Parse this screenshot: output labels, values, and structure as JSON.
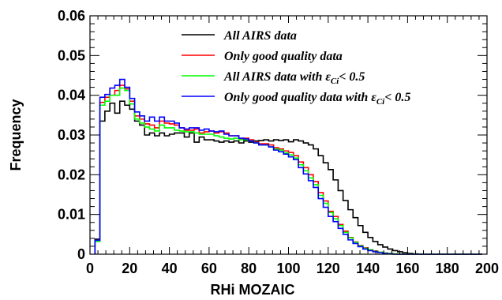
{
  "chart_data": {
    "type": "line",
    "xlabel": "RHi MOZAIC",
    "ylabel": "Frequency",
    "xlim": [
      0,
      200
    ],
    "ylim": [
      0,
      0.06
    ],
    "x_ticks": [
      "0",
      "20",
      "40",
      "60",
      "80",
      "100",
      "120",
      "140",
      "160",
      "180",
      "200"
    ],
    "y_ticks": [
      "0",
      "0.01",
      "0.02",
      "0.03",
      "0.04",
      "0.05",
      "0.06"
    ],
    "grid": false,
    "legend_position": "top-center",
    "bin_width": 2.5,
    "bin_start": 2.5,
    "series": [
      {
        "name": "All AIRS data",
        "name_parts": [
          "All AIRS data"
        ],
        "color": "#000000",
        "values": [
          0.0038,
          0.0335,
          0.036,
          0.038,
          0.0355,
          0.0385,
          0.0375,
          0.0365,
          0.0335,
          0.0325,
          0.03,
          0.0305,
          0.0298,
          0.0305,
          0.0298,
          0.0302,
          0.0305,
          0.0305,
          0.0295,
          0.0305,
          0.0282,
          0.0295,
          0.0288,
          0.0288,
          0.0285,
          0.0282,
          0.0285,
          0.0282,
          0.0285,
          0.028,
          0.0285,
          0.0282,
          0.0285,
          0.0286,
          0.0288,
          0.0285,
          0.0288,
          0.0286,
          0.0288,
          0.0283,
          0.0288,
          0.0285,
          0.028,
          0.0275,
          0.0265,
          0.0248,
          0.023,
          0.0213,
          0.0187,
          0.016,
          0.0135,
          0.0112,
          0.0092,
          0.0072,
          0.0055,
          0.0042,
          0.0032,
          0.0024,
          0.0018,
          0.0013,
          0.0009,
          0.0006,
          0.0004,
          0.0002,
          0.0001,
          5e-05,
          0.0,
          0.0,
          0.0,
          0.0,
          0.0,
          0.0,
          0.0,
          0.0,
          0.0,
          0.0,
          0.0,
          0.0
        ]
      },
      {
        "name": "Only good quality data",
        "name_parts": [
          "Only good quality data"
        ],
        "color": "#ff0000",
        "values": [
          0.0035,
          0.0382,
          0.0395,
          0.04,
          0.0412,
          0.0425,
          0.0416,
          0.0385,
          0.0348,
          0.034,
          0.0328,
          0.0325,
          0.0318,
          0.0335,
          0.033,
          0.0328,
          0.0325,
          0.0318,
          0.0312,
          0.0312,
          0.0315,
          0.0305,
          0.0308,
          0.031,
          0.0305,
          0.0308,
          0.0305,
          0.0298,
          0.0298,
          0.029,
          0.0292,
          0.0288,
          0.0282,
          0.0278,
          0.0278,
          0.0275,
          0.0268,
          0.0265,
          0.026,
          0.0256,
          0.0248,
          0.0232,
          0.0218,
          0.02,
          0.0183,
          0.0155,
          0.0134,
          0.0108,
          0.0095,
          0.0075,
          0.0058,
          0.0042,
          0.0031,
          0.0022,
          0.0016,
          0.0011,
          0.0008,
          0.0005,
          0.0003,
          0.0002,
          0.0001,
          0.0,
          0.0,
          0.0,
          0.0,
          0.0,
          0.0,
          0.0,
          0.0,
          0.0,
          0.0,
          0.0,
          0.0,
          0.0,
          0.0,
          0.0,
          0.0,
          0.0
        ]
      },
      {
        "name": "All AIRS data with εCi< 0.5",
        "name_parts": [
          "All AIRS data with ε",
          "Ci",
          "< 0.5"
        ],
        "color": "#00ff00",
        "values": [
          0.0032,
          0.0375,
          0.0385,
          0.04,
          0.04,
          0.0418,
          0.0412,
          0.0378,
          0.034,
          0.033,
          0.032,
          0.0315,
          0.031,
          0.0325,
          0.0318,
          0.0318,
          0.0312,
          0.031,
          0.0308,
          0.0308,
          0.0305,
          0.0302,
          0.0302,
          0.0302,
          0.0298,
          0.0295,
          0.0292,
          0.029,
          0.0292,
          0.0288,
          0.0288,
          0.0285,
          0.028,
          0.0275,
          0.0275,
          0.027,
          0.0265,
          0.0262,
          0.0255,
          0.025,
          0.0242,
          0.0225,
          0.021,
          0.0192,
          0.0175,
          0.0148,
          0.0128,
          0.0105,
          0.0089,
          0.0072,
          0.0055,
          0.0041,
          0.003,
          0.0021,
          0.0015,
          0.0011,
          0.0007,
          0.0005,
          0.0003,
          0.0002,
          0.0001,
          0.0,
          0.0,
          0.0,
          0.0,
          0.0,
          0.0,
          0.0,
          0.0,
          0.0,
          0.0,
          0.0,
          0.0,
          0.0,
          0.0,
          0.0,
          0.0,
          0.0
        ]
      },
      {
        "name": "Only good quality data with εCi< 0.5",
        "name_parts": [
          "Only good quality data with ε",
          "Ci",
          "< 0.5"
        ],
        "color": "#0000ff",
        "values": [
          0.0035,
          0.0395,
          0.0402,
          0.0418,
          0.0425,
          0.044,
          0.042,
          0.0392,
          0.0358,
          0.0348,
          0.0335,
          0.0345,
          0.0335,
          0.0345,
          0.0335,
          0.0335,
          0.033,
          0.0318,
          0.0315,
          0.0318,
          0.0318,
          0.0312,
          0.0315,
          0.031,
          0.0308,
          0.031,
          0.0302,
          0.0298,
          0.0298,
          0.0292,
          0.029,
          0.0285,
          0.028,
          0.0275,
          0.0275,
          0.027,
          0.0262,
          0.0258,
          0.0252,
          0.0245,
          0.0238,
          0.0218,
          0.0202,
          0.0185,
          0.0168,
          0.014,
          0.0118,
          0.0095,
          0.0082,
          0.0065,
          0.005,
          0.0036,
          0.0027,
          0.0019,
          0.0013,
          0.0009,
          0.0006,
          0.0004,
          0.0002,
          0.0001,
          0.0,
          0.0,
          0.0,
          0.0,
          0.0,
          0.0,
          0.0,
          0.0,
          0.0,
          0.0,
          0.0,
          0.0,
          0.0,
          0.0,
          0.0,
          0.0,
          0.0,
          0.0
        ]
      }
    ]
  }
}
